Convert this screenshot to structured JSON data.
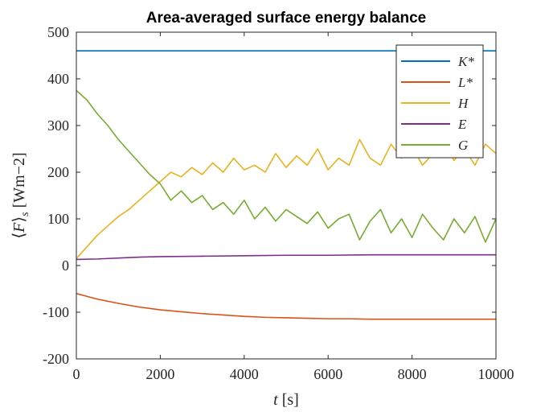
{
  "chart_data": {
    "type": "line",
    "title": "Area-averaged surface energy balance",
    "xlabel": "t [s]",
    "ylabel": "⟨F⟩s [Wm−2]",
    "xlim": [
      0,
      10000
    ],
    "ylim": [
      -200,
      500
    ],
    "xticks": [
      0,
      2000,
      4000,
      6000,
      8000,
      10000
    ],
    "yticks": [
      -200,
      -100,
      0,
      100,
      200,
      300,
      400,
      500
    ],
    "grid": false,
    "legend_position": "top-right",
    "series": [
      {
        "name": "K*",
        "color": "#0072BD",
        "x": [
          0,
          10000
        ],
        "values": [
          460,
          460
        ]
      },
      {
        "name": "L*",
        "color": "#D95319",
        "x": [
          0,
          250,
          500,
          1000,
          1500,
          2000,
          2500,
          3000,
          3500,
          4000,
          4500,
          5000,
          5500,
          6000,
          6500,
          7000,
          7500,
          8000,
          8500,
          9000,
          9500,
          10000
        ],
        "values": [
          -60,
          -66,
          -72,
          -81,
          -89,
          -95,
          -99,
          -103,
          -106,
          -109,
          -111,
          -112,
          -113,
          -114,
          -114,
          -115,
          -115,
          -115,
          -115,
          -115,
          -115,
          -115
        ]
      },
      {
        "name": "H",
        "color": "#EDB120",
        "x": [
          0,
          250,
          500,
          750,
          1000,
          1250,
          1500,
          1750,
          2000,
          2250,
          2500,
          2750,
          3000,
          3250,
          3500,
          3750,
          4000,
          4250,
          4500,
          4750,
          5000,
          5250,
          5500,
          5750,
          6000,
          6250,
          6500,
          6750,
          7000,
          7250,
          7500,
          7750,
          8000,
          8250,
          8500,
          8750,
          9000,
          9250,
          9500,
          9750,
          10000
        ],
        "values": [
          15,
          40,
          65,
          85,
          105,
          120,
          140,
          160,
          180,
          200,
          190,
          210,
          195,
          220,
          200,
          230,
          205,
          215,
          200,
          240,
          210,
          235,
          215,
          250,
          205,
          230,
          215,
          270,
          230,
          215,
          260,
          230,
          255,
          215,
          240,
          270,
          225,
          250,
          215,
          260,
          240
        ]
      },
      {
        "name": "E",
        "color": "#7E2F8E",
        "x": [
          0,
          500,
          1000,
          1500,
          2000,
          3000,
          4000,
          5000,
          6000,
          7000,
          8000,
          9000,
          10000
        ],
        "values": [
          13,
          14,
          16,
          18,
          19,
          20,
          21,
          22,
          22,
          23,
          23,
          23,
          23
        ]
      },
      {
        "name": "G",
        "color": "#77AC30",
        "x": [
          0,
          250,
          500,
          750,
          1000,
          1250,
          1500,
          1750,
          2000,
          2250,
          2500,
          2750,
          3000,
          3250,
          3500,
          3750,
          4000,
          4250,
          4500,
          4750,
          5000,
          5250,
          5500,
          5750,
          6000,
          6250,
          6500,
          6750,
          7000,
          7250,
          7500,
          7750,
          8000,
          8250,
          8500,
          8750,
          9000,
          9250,
          9500,
          9750,
          10000
        ],
        "values": [
          375,
          355,
          325,
          300,
          270,
          245,
          220,
          195,
          175,
          140,
          160,
          135,
          150,
          120,
          135,
          110,
          140,
          100,
          125,
          95,
          120,
          105,
          90,
          115,
          80,
          100,
          110,
          55,
          95,
          120,
          70,
          100,
          60,
          110,
          80,
          55,
          100,
          70,
          105,
          50,
          100
        ]
      }
    ]
  }
}
